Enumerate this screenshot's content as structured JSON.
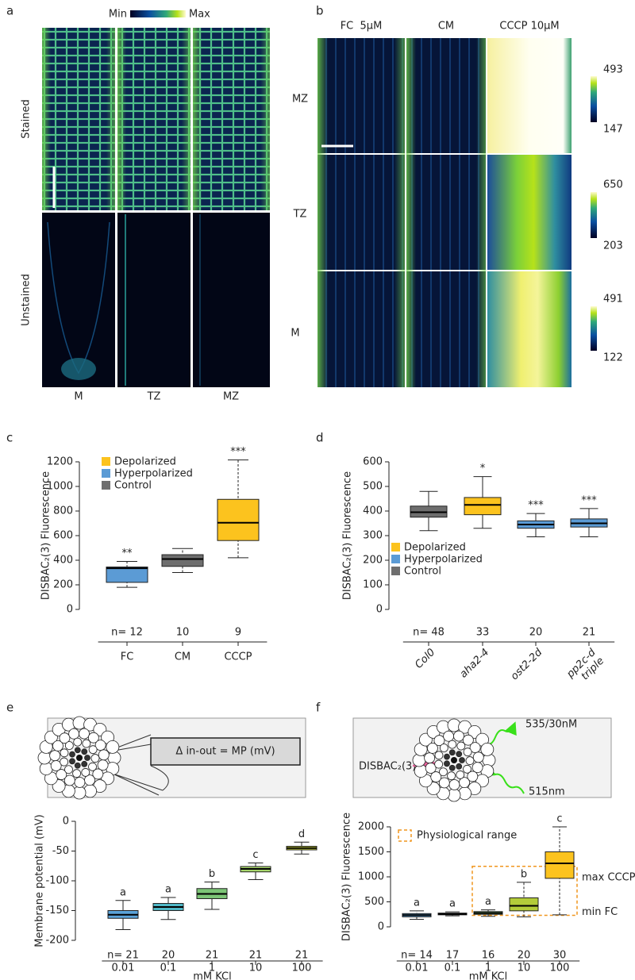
{
  "panel_a": {
    "label": "a",
    "colorbar": {
      "min": "Min",
      "max": "Max"
    },
    "rows": [
      "Stained",
      "Unstained"
    ],
    "columns": [
      "M",
      "TZ",
      "MZ"
    ]
  },
  "panel_b": {
    "label": "b",
    "columns": [
      "FC  5µM",
      "CM",
      "CCCP 10µM"
    ],
    "rows": [
      "MZ",
      "TZ",
      "M"
    ],
    "colorbars": [
      {
        "max": 493,
        "min": 147
      },
      {
        "max": 650,
        "min": 203
      },
      {
        "max": 491,
        "min": 122
      }
    ]
  },
  "chart_data": [
    {
      "type": "box",
      "panel": "c",
      "ylabel": "DISBAC₂(3) Fluorescence",
      "categories": [
        "FC",
        "CM",
        "CCCP"
      ],
      "n_labels": [
        "n= 12",
        "10",
        "9"
      ],
      "annotations": [
        "**",
        null,
        "***"
      ],
      "boxes": [
        {
          "min": 180,
          "q1": 220,
          "median": 335,
          "q3": 345,
          "max": 390,
          "color": "#5b9bd5"
        },
        {
          "min": 300,
          "q1": 350,
          "median": 410,
          "q3": 445,
          "max": 495,
          "color": "#6e6e6e"
        },
        {
          "min": 420,
          "q1": 560,
          "median": 705,
          "q3": 895,
          "max": 1215,
          "color": "#fcc31e"
        }
      ],
      "ylim": [
        0,
        1200
      ],
      "yticks": [
        0,
        200,
        400,
        600,
        800,
        1000,
        1200
      ],
      "legend": [
        {
          "name": "Depolarized",
          "color": "#fcc31e"
        },
        {
          "name": "Hyperpolarized",
          "color": "#5b9bd5"
        },
        {
          "name": "Control",
          "color": "#6e6e6e"
        }
      ]
    },
    {
      "type": "box",
      "panel": "d",
      "ylabel": "DISBAC₂(3) Fluorescence",
      "categories": [
        "Col0",
        "aha2-4",
        "ost2-2d",
        "pp2c-d\ntriple"
      ],
      "n_labels": [
        "n= 48",
        "33",
        "20",
        "21"
      ],
      "annotations": [
        null,
        "*",
        "***",
        "***"
      ],
      "boxes": [
        {
          "min": 320,
          "q1": 375,
          "median": 395,
          "q3": 420,
          "max": 480,
          "color": "#6e6e6e"
        },
        {
          "min": 330,
          "q1": 385,
          "median": 425,
          "q3": 455,
          "max": 540,
          "color": "#fcc31e"
        },
        {
          "min": 295,
          "q1": 330,
          "median": 345,
          "q3": 360,
          "max": 390,
          "color": "#5b9bd5"
        },
        {
          "min": 295,
          "q1": 335,
          "median": 350,
          "q3": 368,
          "max": 410,
          "color": "#5b9bd5"
        }
      ],
      "ylim": [
        0,
        600
      ],
      "yticks": [
        0,
        100,
        200,
        300,
        400,
        500,
        600
      ],
      "legend": [
        {
          "name": "Depolarized",
          "color": "#fcc31e"
        },
        {
          "name": "Hyperpolarized",
          "color": "#5b9bd5"
        },
        {
          "name": "Control",
          "color": "#6e6e6e"
        }
      ]
    },
    {
      "type": "box",
      "panel": "e",
      "ylabel": "Membrane potential (mV)",
      "xlabel": "mM KCl",
      "categories": [
        "0.01",
        "0.1",
        "1",
        "10",
        "100"
      ],
      "n_labels": [
        "n= 21",
        "20",
        "21",
        "21",
        "21"
      ],
      "annotations": [
        "a",
        "a",
        "b",
        "c",
        "d"
      ],
      "boxes": [
        {
          "min": -182,
          "q1": -163,
          "median": -157,
          "q3": -150,
          "max": -133,
          "color": "#5ba3d9"
        },
        {
          "min": -165,
          "q1": -150,
          "median": -144,
          "q3": -138,
          "max": -128,
          "color": "#4fb7c6"
        },
        {
          "min": -148,
          "q1": -130,
          "median": -122,
          "q3": -113,
          "max": -102,
          "color": "#7cc576"
        },
        {
          "min": -98,
          "q1": -85,
          "median": -80,
          "q3": -76,
          "max": -70,
          "color": "#a5d46a"
        },
        {
          "min": -55,
          "q1": -48,
          "median": -45,
          "q3": -42,
          "max": -35,
          "color": "#d7e03a"
        }
      ],
      "ylim": [
        -200,
        0
      ],
      "yticks": [
        -200,
        -150,
        -100,
        -50,
        0
      ],
      "inset": {
        "formula": "Δ in-out = MP (mV)"
      }
    },
    {
      "type": "box",
      "panel": "f",
      "ylabel": "DISBAC₂(3) Fluorescence",
      "xlabel": "mM KCl",
      "categories": [
        "0.01",
        "0.1",
        "1",
        "10",
        "100"
      ],
      "n_labels": [
        "n= 14",
        "17",
        "16",
        "20",
        "30"
      ],
      "annotations": [
        "a",
        "a",
        "a",
        "b",
        "c"
      ],
      "boxes": [
        {
          "min": 150,
          "q1": 200,
          "median": 235,
          "q3": 265,
          "max": 320,
          "color": "#5ba3d9"
        },
        {
          "min": 220,
          "q1": 240,
          "median": 255,
          "q3": 275,
          "max": 300,
          "color": "#6aaab8"
        },
        {
          "min": 210,
          "q1": 250,
          "median": 275,
          "q3": 305,
          "max": 340,
          "color": "#7cc576"
        },
        {
          "min": 200,
          "q1": 320,
          "median": 420,
          "q3": 580,
          "max": 890,
          "color": "#b3cc3a"
        },
        {
          "min": 240,
          "q1": 970,
          "median": 1270,
          "q3": 1500,
          "max": 2000,
          "color": "#fcc31e"
        }
      ],
      "ylim": [
        0,
        2000
      ],
      "yticks": [
        0,
        500,
        1000,
        1500,
        2000
      ],
      "range": {
        "label": "Physiological range",
        "low": 230,
        "high": 1210,
        "low_label": "min FC",
        "high_label": "max CCCP"
      },
      "inset": {
        "dye": "DISBAC₂(3)",
        "emission": "535/30nM",
        "excitation": "515nm"
      }
    }
  ]
}
